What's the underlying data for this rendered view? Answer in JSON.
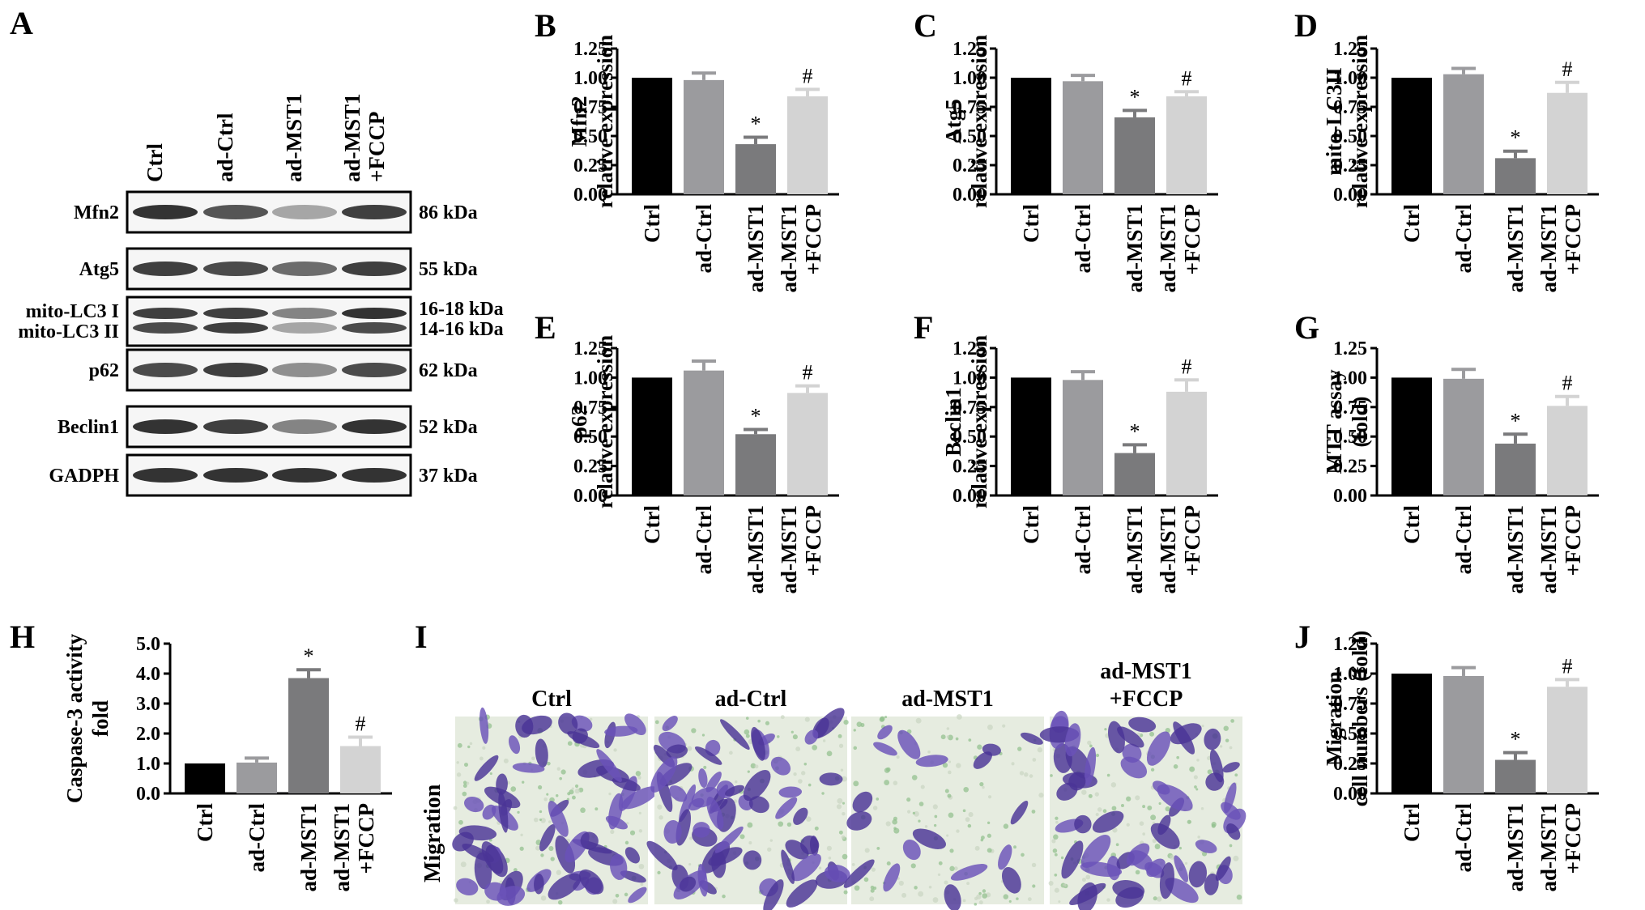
{
  "colors": {
    "Ctrl": "#000000",
    "ad-Ctrl": "#9b9b9e",
    "ad-MST1": "#7a7a7c",
    "ad-MST1 +FCCP": "#d3d3d3"
  },
  "categories": [
    "Ctrl",
    "ad-Ctrl",
    "ad-MST1",
    "ad-MST1\n+FCCP"
  ],
  "blot": {
    "panel_label": "A",
    "columns": [
      "Ctrl",
      "ad-Ctrl",
      "ad-MST1",
      "ad-MST1\n+FCCP"
    ],
    "rows": [
      {
        "label": "Mfn2",
        "kda": "86 kDa"
      },
      {
        "label": "Atg5",
        "kda": "55 kDa"
      },
      {
        "label": "mito-LC3 I\nmito-LC3 II",
        "kda": "16-18 kDa\n14-16 kDa"
      },
      {
        "label": "p62",
        "kda": "62 kDa"
      },
      {
        "label": "Beclin1",
        "kda": "52 kDa"
      },
      {
        "label": "GADPH",
        "kda": "37 kDa"
      }
    ]
  },
  "migration": {
    "panel_label": "I",
    "row_label": "Migration",
    "columns": [
      "Ctrl",
      "ad-Ctrl",
      "ad-MST1",
      "ad-MST1\n+FCCP"
    ]
  },
  "chart_data": [
    {
      "panel": "B",
      "type": "bar",
      "ylabel": [
        "Mfn2",
        "relative expression"
      ],
      "ylim": [
        0,
        1.25
      ],
      "yticks": [
        "0.00",
        "0.25",
        "0.50",
        "0.75",
        "1.00",
        "1.25"
      ],
      "values": [
        1.0,
        0.98,
        0.43,
        0.84
      ],
      "errors": [
        0,
        0.06,
        0.06,
        0.06
      ],
      "marks": [
        "",
        "",
        "*",
        "#"
      ]
    },
    {
      "panel": "C",
      "type": "bar",
      "ylabel": [
        "Atg5",
        "relative expression"
      ],
      "ylim": [
        0,
        1.25
      ],
      "yticks": [
        "0.00",
        "0.25",
        "0.50",
        "0.75",
        "1.00",
        "1.25"
      ],
      "values": [
        1.0,
        0.97,
        0.66,
        0.84
      ],
      "errors": [
        0,
        0.05,
        0.06,
        0.04
      ],
      "marks": [
        "",
        "",
        "*",
        "#"
      ]
    },
    {
      "panel": "D",
      "type": "bar",
      "ylabel": [
        "mito-LC3II",
        "relative expression"
      ],
      "ylim": [
        0,
        1.25
      ],
      "yticks": [
        "0.00",
        "0.25",
        "0.50",
        "0.75",
        "1.00",
        "1.25"
      ],
      "values": [
        1.0,
        1.03,
        0.31,
        0.87
      ],
      "errors": [
        0,
        0.05,
        0.06,
        0.09
      ],
      "marks": [
        "",
        "",
        "*",
        "#"
      ]
    },
    {
      "panel": "E",
      "type": "bar",
      "ylabel": [
        "p62",
        "relative expression"
      ],
      "ylim": [
        0,
        1.25
      ],
      "yticks": [
        "0.00",
        "0.25",
        "0.50",
        "0.75",
        "1.00",
        "1.25"
      ],
      "values": [
        1.0,
        1.06,
        0.52,
        0.87
      ],
      "errors": [
        0,
        0.08,
        0.04,
        0.06
      ],
      "marks": [
        "",
        "",
        "*",
        "#"
      ]
    },
    {
      "panel": "F",
      "type": "bar",
      "ylabel": [
        "Beclin1",
        "relative expression"
      ],
      "ylim": [
        0,
        1.25
      ],
      "yticks": [
        "0.00",
        "0.25",
        "0.50",
        "0.75",
        "1.00",
        "1.25"
      ],
      "values": [
        1.0,
        0.98,
        0.36,
        0.88
      ],
      "errors": [
        0,
        0.07,
        0.07,
        0.1
      ],
      "marks": [
        "",
        "",
        "*",
        "#"
      ]
    },
    {
      "panel": "G",
      "type": "bar",
      "ylabel": [
        "MTT assay",
        "(fold)"
      ],
      "ylim": [
        0,
        1.25
      ],
      "yticks": [
        "0.00",
        "0.25",
        "0.50",
        "0.75",
        "1.00",
        "1.25"
      ],
      "values": [
        1.0,
        0.99,
        0.44,
        0.76
      ],
      "errors": [
        0,
        0.08,
        0.08,
        0.08
      ],
      "marks": [
        "",
        "",
        "*",
        "#"
      ]
    },
    {
      "panel": "H",
      "type": "bar",
      "ylabel": [
        "Caspase-3 activity",
        "fold"
      ],
      "ylim": [
        0,
        5.0
      ],
      "yticks": [
        "0.0",
        "1.0",
        "2.0",
        "3.0",
        "4.0",
        "5.0"
      ],
      "values": [
        1.0,
        1.03,
        3.85,
        1.58
      ],
      "errors": [
        0,
        0.15,
        0.28,
        0.3
      ],
      "marks": [
        "",
        "",
        "*",
        "#"
      ]
    },
    {
      "panel": "J",
      "type": "bar",
      "ylabel": [
        "Migration",
        "cell numbers (fold)"
      ],
      "ylim": [
        0,
        1.25
      ],
      "yticks": [
        "0.00",
        "0.25",
        "0.50",
        "0.75",
        "1.00",
        "1.25"
      ],
      "values": [
        1.0,
        0.98,
        0.28,
        0.89
      ],
      "errors": [
        0,
        0.07,
        0.06,
        0.06
      ],
      "marks": [
        "",
        "",
        "*",
        "#"
      ]
    }
  ]
}
